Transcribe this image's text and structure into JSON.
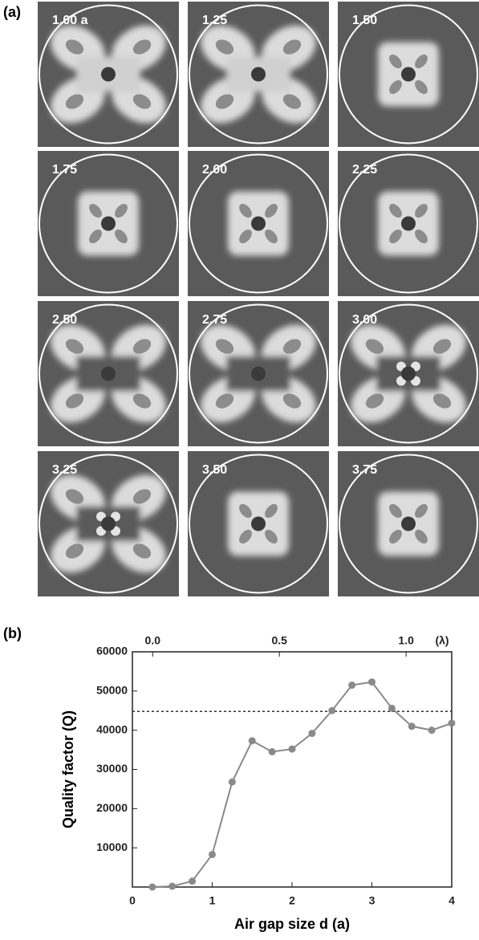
{
  "panel_a": {
    "label": "(a)",
    "tiles": [
      "1.00 a",
      "1.25",
      "1.50",
      "1.75",
      "2.00",
      "2.25",
      "2.50",
      "2.75",
      "3.00",
      "3.25",
      "3.50",
      "3.75"
    ]
  },
  "chart_data": {
    "type": "line",
    "panel_label": "(b)",
    "x_label": "Air gap size d (a)",
    "y_label": "Quality factor (Q)",
    "x2_unit": "(λ)",
    "x": [
      0.25,
      0.5,
      0.75,
      1,
      1.25,
      1.5,
      1.75,
      2,
      2.25,
      2.5,
      2.75,
      3,
      3.25,
      3.5,
      3.75,
      4
    ],
    "series": [
      {
        "name": "Q",
        "color": "#8a8a8a",
        "values": [
          0,
          200,
          1500,
          8300,
          26800,
          37300,
          34500,
          35200,
          39200,
          45000,
          51500,
          52300,
          45600,
          41000,
          40000,
          41800
        ]
      }
    ],
    "reference_line": 44800,
    "xlim": [
      0,
      4
    ],
    "xticks": [
      0,
      1,
      2,
      3,
      4
    ],
    "ylim": [
      0,
      60000
    ],
    "yticks": [
      10000,
      20000,
      30000,
      40000,
      50000,
      60000
    ],
    "x2lim": [
      -0.08,
      1.18
    ],
    "x2ticks": [
      {
        "value": 0,
        "label": "0.0"
      },
      0.5,
      {
        "value": 1,
        "label": "1.0"
      }
    ]
  }
}
